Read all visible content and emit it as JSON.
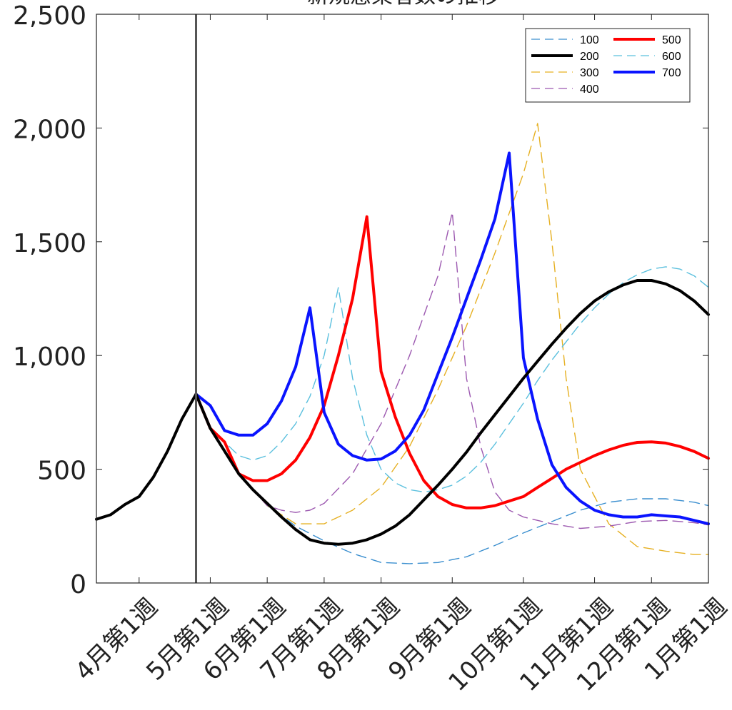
{
  "chart_data": {
    "type": "line",
    "title": "新規感染者数の推移",
    "ylim": [
      0,
      2500
    ],
    "y_ticks": [
      0,
      500,
      1000,
      1500,
      2000,
      2500
    ],
    "y_tick_labels": [
      "0",
      "500",
      "1,000",
      "1,500",
      "2,000",
      "2,500"
    ],
    "xlim": [
      0,
      43
    ],
    "x_ticks": [
      3,
      8,
      12,
      16,
      20,
      25,
      30,
      35,
      39,
      43
    ],
    "x_tick_labels": [
      "4月第1週",
      "5月第1週",
      "6月第1週",
      "7月第1週",
      "8月第1週",
      "9月第1週",
      "10月第1週",
      "11月第1週",
      "12月第1週",
      "1月第1週"
    ],
    "vertical_marker_x": 7,
    "grid": false,
    "legend_position": "top-right",
    "series": [
      {
        "name": "100",
        "color": "#3b8fcf",
        "dash": "dashed",
        "x": [
          7,
          8,
          10,
          12,
          14,
          16,
          18,
          20,
          22,
          24,
          26,
          28,
          30,
          32,
          34,
          36,
          38,
          40,
          42,
          43
        ],
        "y": [
          830,
          680,
          480,
          340,
          250,
          185,
          130,
          90,
          85,
          90,
          115,
          165,
          220,
          270,
          320,
          355,
          370,
          370,
          355,
          340
        ]
      },
      {
        "name": "200",
        "color": "#000000",
        "dash": "solid",
        "x": [
          0,
          1,
          2,
          3,
          4,
          5,
          6,
          7,
          8,
          9,
          10,
          11,
          12,
          13,
          14,
          15,
          16,
          17,
          18,
          19,
          20,
          21,
          22,
          23,
          24,
          25,
          26,
          27,
          28,
          29,
          30,
          31,
          32,
          33,
          34,
          35,
          36,
          37,
          38,
          39,
          40,
          41,
          42,
          43
        ],
        "y": [
          280,
          300,
          345,
          380,
          465,
          580,
          720,
          830,
          680,
          580,
          480,
          410,
          350,
          290,
          235,
          190,
          175,
          170,
          175,
          190,
          215,
          250,
          300,
          365,
          430,
          500,
          575,
          660,
          740,
          820,
          900,
          975,
          1050,
          1120,
          1185,
          1240,
          1280,
          1310,
          1330,
          1330,
          1315,
          1285,
          1240,
          1180
        ]
      },
      {
        "name": "300",
        "color": "#e6b022",
        "dash": "dashed",
        "x": [
          7,
          8,
          10,
          12,
          14,
          16,
          18,
          20,
          22,
          24,
          26,
          28,
          30,
          31,
          32,
          33,
          34,
          36,
          38,
          40,
          42,
          43
        ],
        "y": [
          830,
          680,
          480,
          340,
          260,
          260,
          320,
          420,
          600,
          850,
          1130,
          1450,
          1800,
          2020,
          1500,
          900,
          500,
          260,
          160,
          140,
          125,
          125
        ]
      },
      {
        "name": "400",
        "color": "#9c58b0",
        "dash": "dashed",
        "x": [
          7,
          8,
          10,
          12,
          13,
          14,
          15,
          16,
          18,
          20,
          22,
          24,
          25,
          26,
          27,
          28,
          29,
          30,
          32,
          34,
          36,
          38,
          40,
          42,
          43
        ],
        "y": [
          830,
          680,
          480,
          340,
          320,
          310,
          320,
          350,
          480,
          700,
          1000,
          1350,
          1630,
          900,
          600,
          400,
          320,
          290,
          260,
          240,
          250,
          270,
          275,
          265,
          255
        ]
      },
      {
        "name": "500",
        "color": "#ff0000",
        "dash": "solid",
        "x": [
          7,
          8,
          9,
          10,
          11,
          12,
          13,
          14,
          15,
          16,
          17,
          18,
          19,
          20,
          21,
          22,
          23,
          24,
          25,
          26,
          27,
          28,
          29,
          30,
          31,
          32,
          33,
          34,
          35,
          36,
          37,
          38,
          39,
          40,
          41,
          42,
          43
        ],
        "y": [
          830,
          680,
          620,
          480,
          450,
          450,
          480,
          540,
          640,
          780,
          1000,
          1250,
          1610,
          930,
          730,
          570,
          450,
          380,
          345,
          330,
          330,
          340,
          360,
          380,
          420,
          460,
          500,
          530,
          560,
          585,
          605,
          618,
          620,
          615,
          600,
          578,
          548
        ]
      },
      {
        "name": "600",
        "color": "#5bc0de",
        "dash": "dashed",
        "x": [
          7,
          8,
          9,
          10,
          11,
          12,
          13,
          14,
          15,
          16,
          17,
          18,
          19,
          20,
          21,
          22,
          23,
          24,
          25,
          26,
          27,
          28,
          29,
          30,
          31,
          32,
          33,
          34,
          35,
          36,
          37,
          38,
          39,
          40,
          41,
          42,
          43
        ],
        "y": [
          830,
          680,
          620,
          560,
          540,
          560,
          620,
          700,
          820,
          1000,
          1300,
          900,
          650,
          500,
          440,
          410,
          400,
          410,
          430,
          470,
          530,
          610,
          700,
          790,
          890,
          980,
          1060,
          1140,
          1210,
          1270,
          1320,
          1355,
          1380,
          1390,
          1380,
          1350,
          1300
        ]
      },
      {
        "name": "700",
        "color": "#0a14ff",
        "dash": "solid",
        "x": [
          7,
          8,
          9,
          10,
          11,
          12,
          13,
          14,
          15,
          16,
          17,
          18,
          19,
          20,
          21,
          22,
          23,
          24,
          25,
          26,
          27,
          28,
          29,
          30,
          31,
          32,
          33,
          34,
          35,
          36,
          37,
          38,
          39,
          40,
          41,
          42,
          43
        ],
        "y": [
          830,
          780,
          670,
          650,
          650,
          700,
          800,
          950,
          1210,
          750,
          610,
          560,
          540,
          545,
          580,
          650,
          760,
          920,
          1080,
          1250,
          1420,
          1600,
          1890,
          990,
          720,
          520,
          420,
          360,
          320,
          300,
          290,
          290,
          300,
          295,
          290,
          275,
          260
        ]
      }
    ]
  }
}
